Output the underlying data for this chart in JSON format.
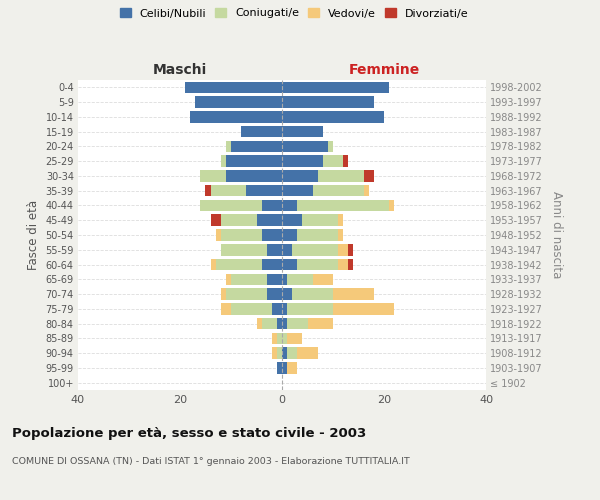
{
  "age_groups": [
    "100+",
    "95-99",
    "90-94",
    "85-89",
    "80-84",
    "75-79",
    "70-74",
    "65-69",
    "60-64",
    "55-59",
    "50-54",
    "45-49",
    "40-44",
    "35-39",
    "30-34",
    "25-29",
    "20-24",
    "15-19",
    "10-14",
    "5-9",
    "0-4"
  ],
  "birth_years": [
    "≤ 1902",
    "1903-1907",
    "1908-1912",
    "1913-1917",
    "1918-1922",
    "1923-1927",
    "1928-1932",
    "1933-1937",
    "1938-1942",
    "1943-1947",
    "1948-1952",
    "1953-1957",
    "1958-1962",
    "1963-1967",
    "1968-1972",
    "1973-1977",
    "1978-1982",
    "1983-1987",
    "1988-1992",
    "1993-1997",
    "1998-2002"
  ],
  "maschi": {
    "celibi": [
      0,
      1,
      0,
      0,
      1,
      2,
      3,
      3,
      4,
      3,
      4,
      5,
      4,
      7,
      11,
      11,
      10,
      8,
      18,
      17,
      19
    ],
    "coniugati": [
      0,
      0,
      1,
      1,
      3,
      8,
      8,
      7,
      9,
      9,
      8,
      7,
      12,
      7,
      5,
      1,
      1,
      0,
      0,
      0,
      0
    ],
    "vedovi": [
      0,
      0,
      1,
      1,
      1,
      2,
      1,
      1,
      1,
      0,
      1,
      0,
      0,
      0,
      0,
      0,
      0,
      0,
      0,
      0,
      0
    ],
    "divorziati": [
      0,
      0,
      0,
      0,
      0,
      0,
      0,
      0,
      0,
      0,
      0,
      2,
      0,
      1,
      0,
      0,
      0,
      0,
      0,
      0,
      0
    ]
  },
  "femmine": {
    "nubili": [
      0,
      1,
      1,
      0,
      1,
      1,
      2,
      1,
      3,
      2,
      3,
      4,
      3,
      6,
      7,
      8,
      9,
      8,
      20,
      18,
      21
    ],
    "coniugate": [
      0,
      0,
      2,
      1,
      4,
      9,
      8,
      5,
      8,
      9,
      8,
      7,
      18,
      10,
      9,
      4,
      1,
      0,
      0,
      0,
      0
    ],
    "vedove": [
      0,
      2,
      4,
      3,
      5,
      12,
      8,
      4,
      2,
      2,
      1,
      1,
      1,
      1,
      0,
      0,
      0,
      0,
      0,
      0,
      0
    ],
    "divorziate": [
      0,
      0,
      0,
      0,
      0,
      0,
      0,
      0,
      1,
      1,
      0,
      0,
      0,
      0,
      2,
      1,
      0,
      0,
      0,
      0,
      0
    ]
  },
  "colors": {
    "celibi": "#4472a8",
    "coniugati": "#c5d9a0",
    "vedovi": "#f5c97a",
    "divorziati": "#c0392b"
  },
  "xlim": 40,
  "title": "Popolazione per età, sesso e stato civile - 2003",
  "subtitle": "COMUNE DI OSSANA (TN) - Dati ISTAT 1° gennaio 2003 - Elaborazione TUTTITALIA.IT",
  "ylabel_left": "Fasce di età",
  "ylabel_right": "Anni di nascita",
  "xlabel_maschi": "Maschi",
  "xlabel_femmine": "Femmine",
  "bg_color": "#f0f0eb",
  "plot_bg": "#ffffff"
}
